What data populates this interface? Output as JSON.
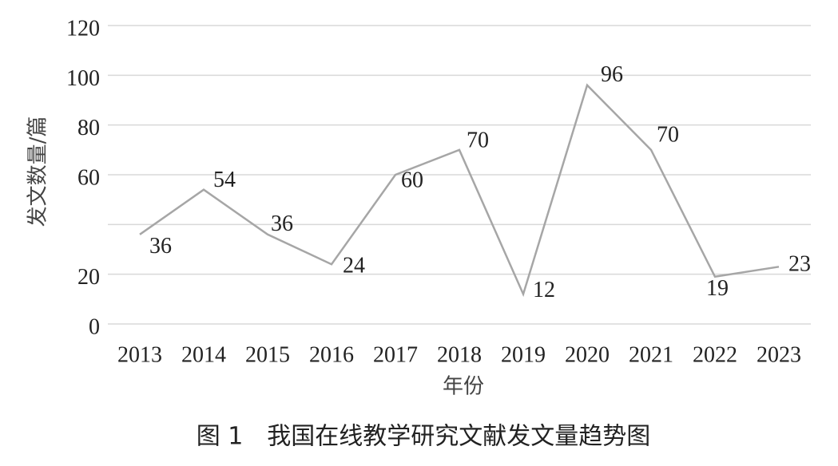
{
  "chart_data": {
    "type": "line",
    "caption": "图 1　我国在线教学研究文献发文量趋势图",
    "x_label": "年份",
    "y_label": "发文数量/篇",
    "categories": [
      "2013",
      "2014",
      "2015",
      "2016",
      "2017",
      "2018",
      "2019",
      "2020",
      "2021",
      "2022",
      "2023"
    ],
    "values": [
      36,
      54,
      36,
      24,
      60,
      70,
      12,
      96,
      70,
      19,
      23
    ],
    "color": "#a6a6a6",
    "ylim": [
      0,
      120
    ],
    "yticks": [
      0,
      20,
      {
        "value": 40,
        "label": null
      },
      60,
      80,
      100,
      120
    ],
    "grid": true
  }
}
